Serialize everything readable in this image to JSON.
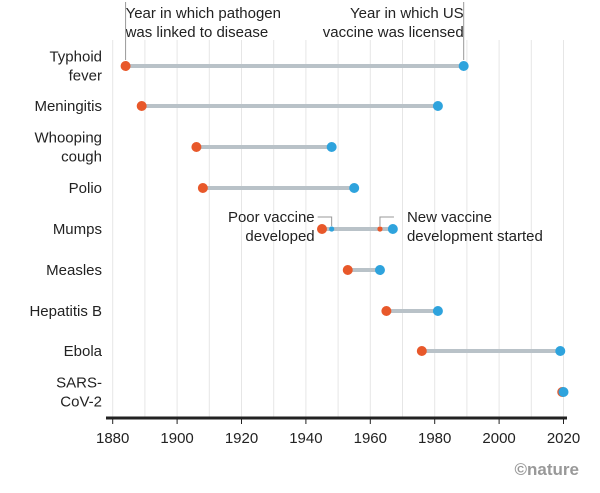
{
  "chart_data": {
    "type": "dumbbell",
    "legend": {
      "start": "Year in which pathogen was linked to disease",
      "end": "Year in which US vaccine was licensed"
    },
    "legend_lines": {
      "start": [
        "Year in which pathogen",
        "was linked to disease"
      ],
      "end": [
        "Year in which US",
        "vaccine was licensed"
      ]
    },
    "xlim": [
      1880,
      2020
    ],
    "x_ticks": [
      1880,
      1900,
      1920,
      1940,
      1960,
      1980,
      2000,
      2020
    ],
    "grid": "vertical every 10 years",
    "rows": [
      {
        "label": [
          "Typhoid",
          "fever"
        ],
        "start": 1884,
        "end": 1989
      },
      {
        "label": [
          "Meningitis"
        ],
        "start": 1889,
        "end": 1981
      },
      {
        "label": [
          "Whooping",
          "cough"
        ],
        "start": 1906,
        "end": 1948
      },
      {
        "label": [
          "Polio"
        ],
        "start": 1908,
        "end": 1955
      },
      {
        "label": [
          "Mumps"
        ],
        "start": 1945,
        "end": 1967,
        "poor_vaccine": 1948,
        "new_dev": 1963
      },
      {
        "label": [
          "Measles"
        ],
        "start": 1953,
        "end": 1963
      },
      {
        "label": [
          "Hepatitis B"
        ],
        "start": 1965,
        "end": 1981
      },
      {
        "label": [
          "Ebola"
        ],
        "start": 1976,
        "end": 2019
      },
      {
        "label": [
          "SARS-",
          "CoV-2"
        ],
        "start": 2019.6,
        "end": 2020
      }
    ],
    "annotations": {
      "poor": [
        "Poor vaccine",
        "developed"
      ],
      "new": [
        "New vaccine",
        "development started"
      ]
    },
    "colors": {
      "start": "#e8582a",
      "end": "#2ea3dd",
      "bar": "#b9c2c8"
    }
  },
  "credit": "©nature"
}
